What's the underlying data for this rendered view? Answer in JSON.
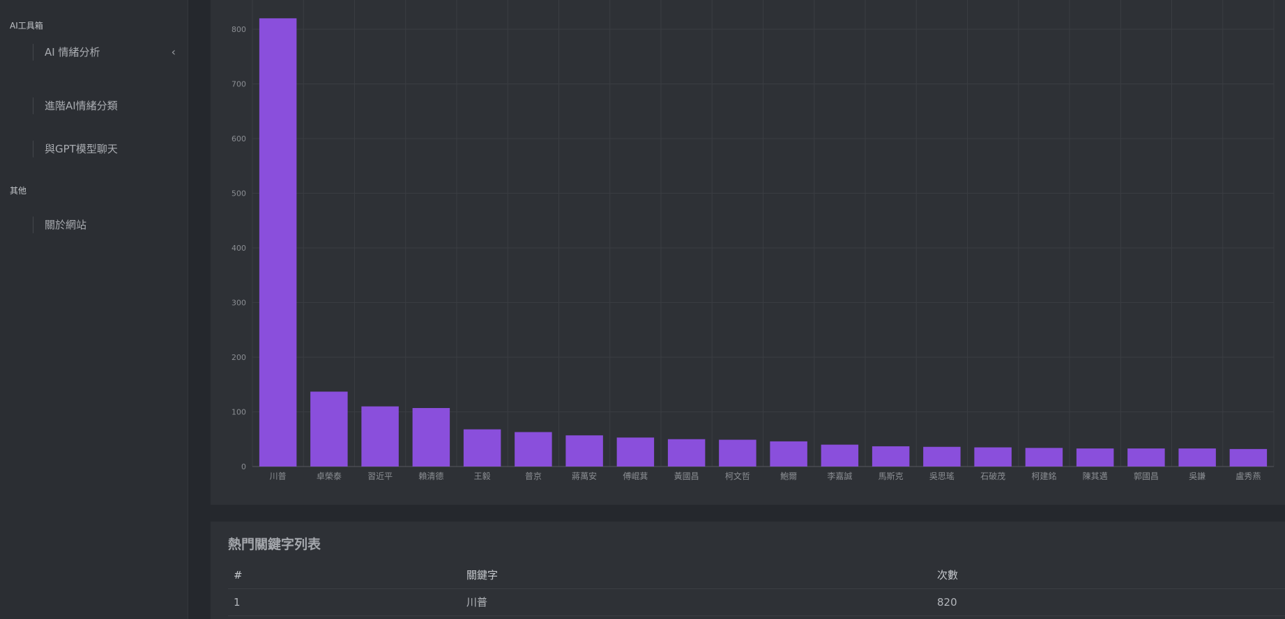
{
  "sidebar": {
    "sections": [
      {
        "label": "AI工具箱"
      },
      {
        "label": "其他"
      }
    ],
    "items": [
      {
        "label": "AI 情緒分析",
        "icon": "chevron-left-icon"
      },
      {
        "label": "進階AI情緒分類"
      },
      {
        "label": "與GPT模型聊天"
      },
      {
        "label": "關於網站"
      }
    ]
  },
  "chart_data": {
    "type": "bar",
    "categories": [
      "川普",
      "卓榮泰",
      "習近平",
      "賴清德",
      "王毅",
      "普京",
      "蔣萬安",
      "傅崐萁",
      "黃國昌",
      "柯文哲",
      "鮑爾",
      "李嘉誠",
      "馬斯克",
      "吳思瑤",
      "石破茂",
      "柯建銘",
      "陳其邁",
      "郭國昌",
      "吳謙",
      "盧秀燕"
    ],
    "values": [
      820,
      137,
      110,
      107,
      68,
      63,
      57,
      53,
      50,
      49,
      46,
      40,
      37,
      36,
      35,
      34,
      33,
      33,
      33,
      32
    ],
    "ylim": [
      0,
      800
    ],
    "yticks": [
      0,
      100,
      200,
      300,
      400,
      500,
      600,
      700,
      800
    ],
    "grid": true,
    "colors": {
      "bar": "#8a4fdc",
      "grid": "#3a3d42",
      "axis": "#8b8e93"
    }
  },
  "table": {
    "title": "熱門關鍵字列表",
    "headers": [
      "#",
      "關鍵字",
      "次數"
    ],
    "rows": [
      [
        "1",
        "川普",
        "820"
      ]
    ]
  }
}
